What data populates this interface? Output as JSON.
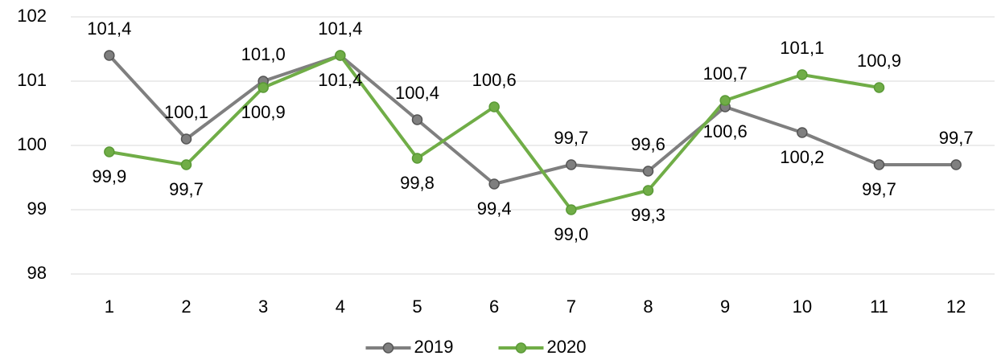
{
  "chart_data": {
    "type": "line",
    "categories": [
      "1",
      "2",
      "3",
      "4",
      "5",
      "6",
      "7",
      "8",
      "9",
      "10",
      "11",
      "12"
    ],
    "series": [
      {
        "name": "2019",
        "color": "#7f7f7f",
        "values": [
          101.4,
          100.1,
          101.0,
          101.4,
          100.4,
          99.4,
          99.7,
          99.6,
          100.6,
          100.2,
          99.7,
          99.7
        ],
        "value_labels": [
          "101,4",
          "100,1",
          "101,0",
          "101,4",
          "100,4",
          "99,4",
          "99,7",
          "99,6",
          "100,6",
          "100,2",
          "99,7",
          "99,7"
        ]
      },
      {
        "name": "2020",
        "color": "#70ad47",
        "values": [
          99.9,
          99.7,
          100.9,
          101.4,
          99.8,
          100.6,
          99.0,
          99.3,
          100.7,
          101.1,
          100.9,
          null
        ],
        "value_labels": [
          "99,9",
          "99,7",
          "100,9",
          "101,4",
          "99,8",
          "100,6",
          "99,0",
          "99,3",
          "100,7",
          "101,1",
          "100,9",
          null
        ]
      }
    ],
    "ylim": [
      98,
      102
    ],
    "yticks": [
      98,
      99,
      100,
      101,
      102
    ],
    "grid": true,
    "legend": "bottom"
  }
}
